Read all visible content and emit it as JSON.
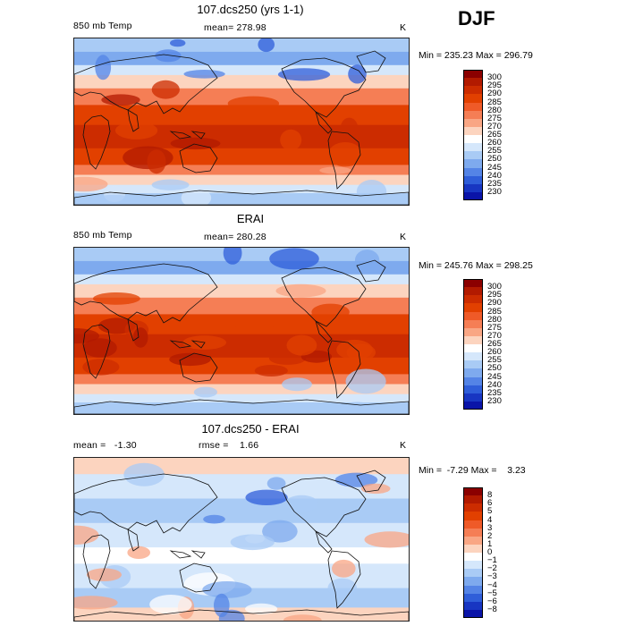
{
  "season": "DJF",
  "panels": [
    {
      "title": "107.dcs250 (yrs 1-1)",
      "left_label": "850 mb Temp",
      "center_label": "mean= 278.98",
      "units": "K",
      "minmax": "Min = 235.23 Max = 296.79",
      "colorbar": {
        "labels": [
          "300",
          "295",
          "290",
          "285",
          "280",
          "275",
          "270",
          "265",
          "260",
          "255",
          "250",
          "245",
          "240",
          "235",
          "230"
        ],
        "colors": [
          "#8b0000",
          "#b21a00",
          "#cc2c00",
          "#e24000",
          "#ef5a28",
          "#f57e55",
          "#f9a684",
          "#fcd4bf",
          "#ffffff",
          "#d5e7fb",
          "#a9cbf5",
          "#7eaaee",
          "#5484e6",
          "#2f5ed9",
          "#1836c2",
          "#0a14a8"
        ]
      },
      "map_palette": "abs"
    },
    {
      "title": "ERAI",
      "left_label": "850 mb Temp",
      "center_label": "mean= 280.28",
      "units": "K",
      "minmax": "Min = 245.76 Max = 298.25",
      "colorbar": {
        "labels": [
          "300",
          "295",
          "290",
          "285",
          "280",
          "275",
          "270",
          "265",
          "260",
          "255",
          "250",
          "245",
          "240",
          "235",
          "230"
        ],
        "colors": [
          "#8b0000",
          "#b21a00",
          "#cc2c00",
          "#e24000",
          "#ef5a28",
          "#f57e55",
          "#f9a684",
          "#fcd4bf",
          "#ffffff",
          "#d5e7fb",
          "#a9cbf5",
          "#7eaaee",
          "#5484e6",
          "#2f5ed9",
          "#1836c2",
          "#0a14a8"
        ]
      },
      "map_palette": "abs"
    },
    {
      "title": "107.dcs250 - ERAI",
      "left_label": "mean =   -1.30",
      "center_label": "rmse =    1.66",
      "units": "K",
      "minmax": "Min =  -7.29 Max =    3.23",
      "colorbar": {
        "labels": [
          "8",
          "6",
          "5",
          "4",
          "3",
          "2",
          "1",
          "0",
          "−1",
          "−2",
          "−3",
          "−4",
          "−5",
          "−6",
          "−8"
        ],
        "colors": [
          "#8b0000",
          "#b21a00",
          "#cc2c00",
          "#e24000",
          "#ef5a28",
          "#f57e55",
          "#f9a684",
          "#fcd4bf",
          "#ffffff",
          "#d5e7fb",
          "#a9cbf5",
          "#7eaaee",
          "#5484e6",
          "#2f5ed9",
          "#1836c2",
          "#0a14a8"
        ]
      },
      "map_palette": "diff"
    }
  ]
}
